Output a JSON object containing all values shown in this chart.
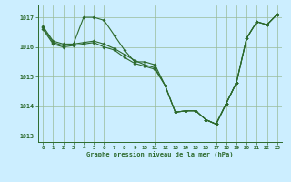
{
  "background_color": "#cceeff",
  "grid_color": "#99bb99",
  "line_color": "#2d6a2d",
  "marker_color": "#2d6a2d",
  "xlabel": "Graphe pression niveau de la mer (hPa)",
  "xlim": [
    -0.5,
    23.5
  ],
  "ylim": [
    1012.8,
    1017.4
  ],
  "yticks": [
    1013,
    1014,
    1015,
    1016,
    1017
  ],
  "xticks": [
    0,
    1,
    2,
    3,
    4,
    5,
    6,
    7,
    8,
    9,
    10,
    11,
    12,
    13,
    14,
    15,
    16,
    17,
    18,
    19,
    20,
    21,
    22,
    23
  ],
  "series": [
    {
      "x": [
        0,
        1,
        2,
        3,
        4,
        5,
        6,
        7,
        8,
        9,
        10,
        11,
        12,
        13,
        14,
        15,
        16,
        17,
        18,
        19
      ],
      "y": [
        1016.7,
        1016.2,
        1016.1,
        1016.1,
        1017.0,
        1017.0,
        1016.9,
        1016.4,
        1015.9,
        1015.5,
        1015.5,
        1015.4,
        1014.7,
        1013.8,
        1013.85,
        1013.85,
        1013.55,
        1013.4,
        1014.1,
        1014.8
      ]
    },
    {
      "x": [
        0,
        1,
        2,
        3,
        4,
        5,
        6,
        7,
        8,
        9,
        10,
        11,
        12,
        13,
        14,
        15,
        16,
        17,
        18,
        19,
        20,
        21,
        22,
        23
      ],
      "y": [
        1016.65,
        1016.15,
        1016.05,
        1016.1,
        1016.15,
        1016.2,
        1016.1,
        1015.95,
        1015.75,
        1015.55,
        1015.4,
        1015.3,
        1014.7,
        1013.8,
        1013.85,
        1013.85,
        1013.55,
        1013.4,
        1014.1,
        1014.8,
        1016.3,
        1016.85,
        1016.75,
        1017.1
      ]
    },
    {
      "x": [
        0,
        1,
        2,
        3,
        4,
        5,
        6,
        7,
        8,
        9,
        10,
        11,
        12,
        13,
        14,
        15,
        16,
        17,
        18,
        19,
        20,
        21,
        22,
        23
      ],
      "y": [
        1016.6,
        1016.1,
        1016.0,
        1016.05,
        1016.1,
        1016.15,
        1016.0,
        1015.9,
        1015.65,
        1015.45,
        1015.35,
        1015.25,
        1014.7,
        1013.8,
        1013.85,
        1013.85,
        1013.55,
        1013.4,
        1014.1,
        1014.8,
        1016.3,
        1016.85,
        1016.75,
        1017.1
      ]
    },
    {
      "x": [
        16,
        17,
        18,
        19,
        20,
        21,
        22,
        23
      ],
      "y": [
        1013.55,
        1013.4,
        1014.1,
        1014.8,
        1016.3,
        1016.85,
        1016.75,
        1017.1
      ]
    }
  ]
}
